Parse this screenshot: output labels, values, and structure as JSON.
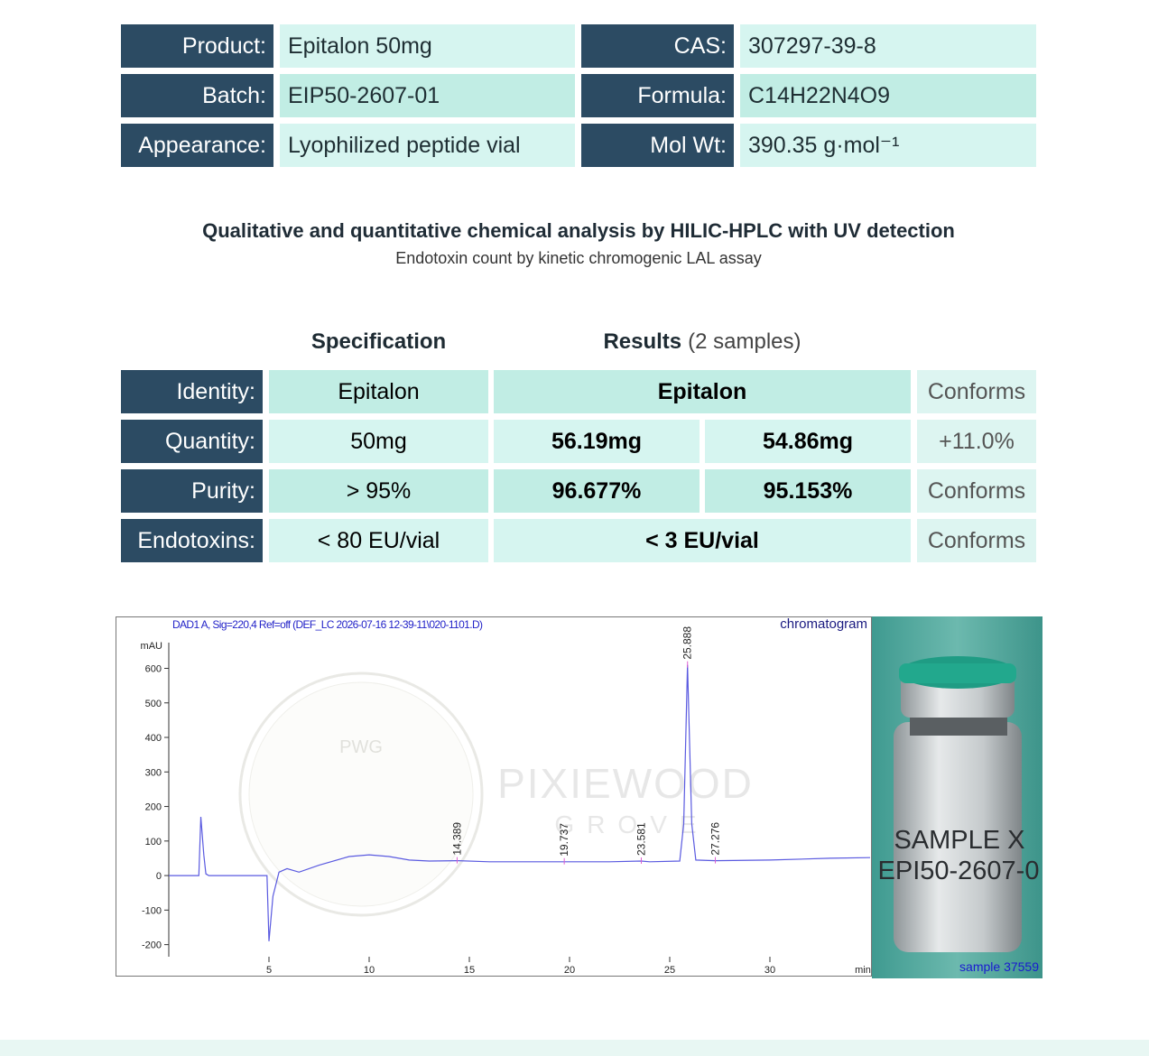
{
  "product_table": {
    "rows": [
      [
        "Product:",
        "Epitalon 50mg",
        "CAS:",
        "307297-39-8"
      ],
      [
        "Batch:",
        "EIP50-2607-01",
        "Formula:",
        "C14H22N4O9"
      ],
      [
        "Appearance:",
        "Lyophilized peptide vial",
        "Mol Wt:",
        "390.35 g·mol⁻¹"
      ]
    ]
  },
  "analysis": {
    "title": "Qualitative and quantitative chemical analysis by HILIC-HPLC with UV detection",
    "subtitle": "Endotoxin count by kinetic chromogenic LAL assay"
  },
  "results_table": {
    "headers": {
      "specification": "Specification",
      "results": "Results",
      "results_note": "(2 samples)"
    },
    "rows": [
      {
        "label": "Identity:",
        "spec": "Epitalon",
        "results": [
          "Epitalon"
        ],
        "status": "Conforms"
      },
      {
        "label": "Quantity:",
        "spec": "50mg",
        "results": [
          "56.19mg",
          "54.86mg"
        ],
        "status": "+11.0%"
      },
      {
        "label": "Purity:",
        "spec": "> 95%",
        "results": [
          "96.677%",
          "95.153%"
        ],
        "status": "Conforms"
      },
      {
        "label": "Endotoxins:",
        "spec": "< 80 EU/vial",
        "results": [
          "< 3 EU/vial"
        ],
        "status": "Conforms"
      }
    ]
  },
  "chart_data": {
    "type": "line",
    "title": "DAD1 A, Sig=220,4 Ref=off (DEF_LC 2026-07-16 12-39-11\\020-1101.D)",
    "corner_label": "chromatogram",
    "y_label": "mAU",
    "x_label": "min",
    "color": "#5a5ae0",
    "x": [
      0,
      1.5,
      1.6,
      1.75,
      1.85,
      2.0,
      4.9,
      5.0,
      5.2,
      5.5,
      5.9,
      6.5,
      7.5,
      9,
      10,
      11,
      12,
      13,
      14.389,
      16,
      18,
      19.737,
      22,
      23.581,
      24,
      25.5,
      25.7,
      25.888,
      26.1,
      26.3,
      27.276,
      30,
      33,
      35
    ],
    "values": [
      0,
      0,
      170,
      60,
      5,
      0,
      0,
      -190,
      -60,
      10,
      20,
      10,
      30,
      55,
      60,
      55,
      45,
      42,
      43,
      40,
      40,
      40,
      40,
      42,
      40,
      42,
      150,
      610,
      150,
      45,
      43,
      45,
      50,
      52
    ],
    "peak_labels": [
      14.389,
      19.737,
      23.581,
      25.888,
      27.276
    ],
    "xlim": [
      0,
      35
    ],
    "ylim": [
      -235,
      745
    ],
    "xticks": [
      5,
      10,
      15,
      20,
      25,
      30
    ],
    "yticks": [
      -200,
      -100,
      0,
      100,
      200,
      300,
      400,
      500,
      600
    ]
  },
  "watermark": {
    "monogram": "PWG",
    "name": "PIXIEWOOD",
    "subname": "GROVE"
  },
  "photo": {
    "vial_text": [
      "SAMPLE X",
      "EPI50-2607-0"
    ],
    "caption": "sample 37559"
  }
}
